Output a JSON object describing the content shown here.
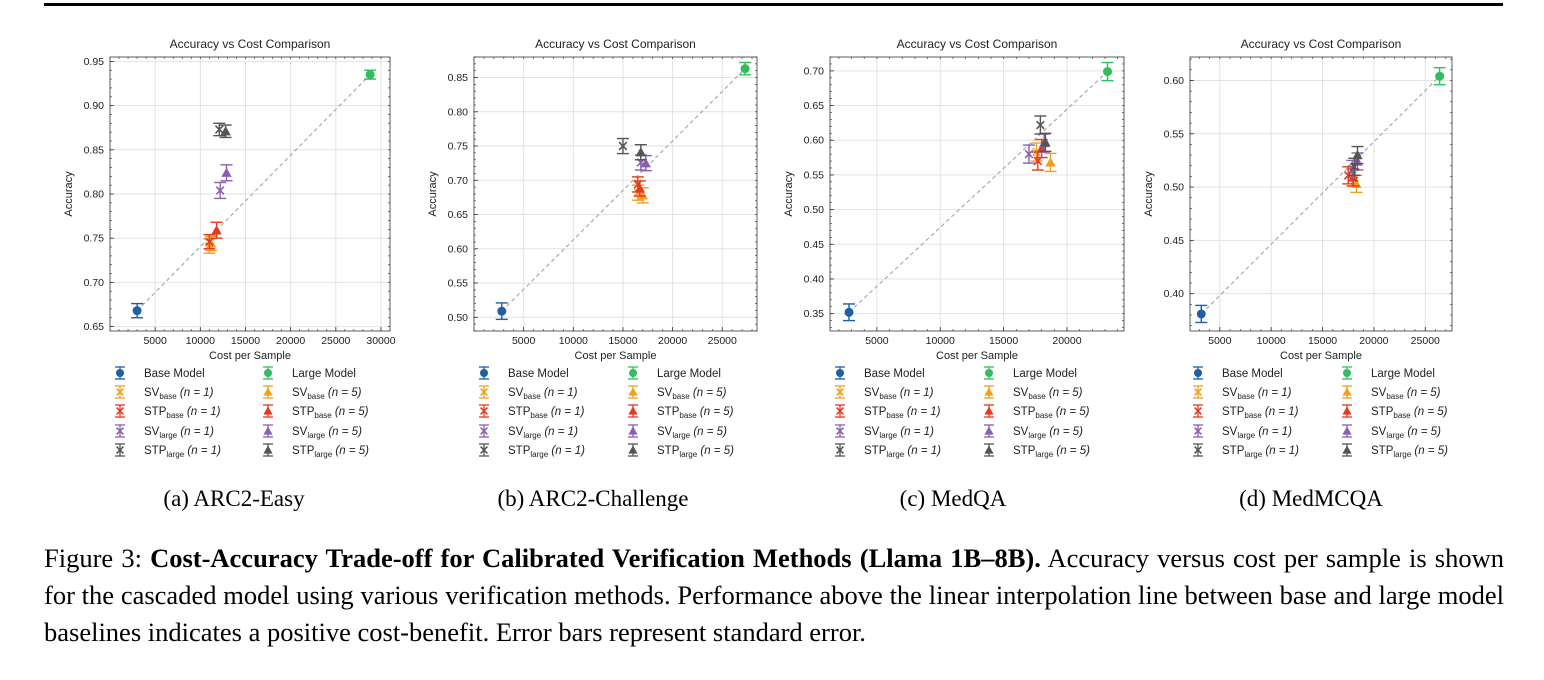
{
  "colors": {
    "base": "#1f5fa5",
    "large": "#2fbf5f",
    "sv_base": "#f0a020",
    "stp_base": "#e53a1e",
    "sv_large": "#8a5fb0",
    "stp_large": "#555555",
    "interp_line": "#aaaaaa",
    "grid": "#e2e2e2"
  },
  "legend_entries": [
    {
      "key": "base",
      "label_main": "Base Model",
      "sub": "",
      "n": "",
      "marker": "circle"
    },
    {
      "key": "large",
      "label_main": "Large Model",
      "sub": "",
      "n": "",
      "marker": "circle"
    },
    {
      "key": "sv_base",
      "label_main": "SV",
      "sub": "base",
      "n": "(n = 1)",
      "marker": "x"
    },
    {
      "key": "sv_base",
      "label_main": "SV",
      "sub": "base",
      "n": "(n = 5)",
      "marker": "triangle"
    },
    {
      "key": "stp_base",
      "label_main": "STP",
      "sub": "base",
      "n": "(n = 1)",
      "marker": "x"
    },
    {
      "key": "stp_base",
      "label_main": "STP",
      "sub": "base",
      "n": "(n = 5)",
      "marker": "triangle"
    },
    {
      "key": "sv_large",
      "label_main": "SV",
      "sub": "large",
      "n": "(n = 1)",
      "marker": "x"
    },
    {
      "key": "sv_large",
      "label_main": "SV",
      "sub": "large",
      "n": "(n = 5)",
      "marker": "triangle"
    },
    {
      "key": "stp_large",
      "label_main": "STP",
      "sub": "large",
      "n": "(n = 1)",
      "marker": "x"
    },
    {
      "key": "stp_large",
      "label_main": "STP",
      "sub": "large",
      "n": "(n = 5)",
      "marker": "triangle"
    }
  ],
  "chart_data": [
    {
      "type": "scatter",
      "title": "Accuracy vs Cost Comparison",
      "xlabel": "Cost per Sample",
      "ylabel": "Accuracy",
      "subcaption": "(a) ARC2-Easy",
      "xlim": [
        0,
        31000
      ],
      "ylim": [
        0.645,
        0.955
      ],
      "xticks": [
        5000,
        10000,
        15000,
        20000,
        25000,
        30000
      ],
      "yticks": [
        0.65,
        0.7,
        0.75,
        0.8,
        0.85,
        0.9,
        0.95
      ],
      "ytick_decimals": 2,
      "grid": true,
      "interpolation_line": {
        "from": "base",
        "to": "large"
      },
      "points": [
        {
          "series": "base",
          "marker": "circle",
          "x": 3000,
          "y": 0.668,
          "err": 0.008
        },
        {
          "series": "large",
          "marker": "circle",
          "x": 28800,
          "y": 0.935,
          "err": 0.005
        },
        {
          "series": "sv_base",
          "marker": "x",
          "x": 11000,
          "y": 0.741,
          "err": 0.008
        },
        {
          "series": "sv_base",
          "marker": "triangle",
          "x": 11200,
          "y": 0.744,
          "err": 0.008
        },
        {
          "series": "stp_base",
          "marker": "x",
          "x": 11000,
          "y": 0.746,
          "err": 0.008
        },
        {
          "series": "stp_base",
          "marker": "triangle",
          "x": 11800,
          "y": 0.759,
          "err": 0.009
        },
        {
          "series": "sv_large",
          "marker": "x",
          "x": 12200,
          "y": 0.804,
          "err": 0.009
        },
        {
          "series": "sv_large",
          "marker": "triangle",
          "x": 12900,
          "y": 0.824,
          "err": 0.009
        },
        {
          "series": "stp_large",
          "marker": "x",
          "x": 12100,
          "y": 0.873,
          "err": 0.007
        },
        {
          "series": "stp_large",
          "marker": "triangle",
          "x": 12800,
          "y": 0.871,
          "err": 0.007
        }
      ]
    },
    {
      "type": "scatter",
      "title": "Accuracy vs Cost Comparison",
      "xlabel": "Cost per Sample",
      "ylabel": "Accuracy",
      "subcaption": "(b) ARC2-Challenge",
      "xlim": [
        0,
        28500
      ],
      "ylim": [
        0.48,
        0.88
      ],
      "xticks": [
        5000,
        10000,
        15000,
        20000,
        25000
      ],
      "yticks": [
        0.5,
        0.55,
        0.6,
        0.65,
        0.7,
        0.75,
        0.8,
        0.85
      ],
      "ytick_decimals": 2,
      "grid": true,
      "interpolation_line": {
        "from": "base",
        "to": "large"
      },
      "points": [
        {
          "series": "base",
          "marker": "circle",
          "x": 2800,
          "y": 0.509,
          "err": 0.012
        },
        {
          "series": "large",
          "marker": "circle",
          "x": 27300,
          "y": 0.863,
          "err": 0.009
        },
        {
          "series": "sv_base",
          "marker": "x",
          "x": 16500,
          "y": 0.682,
          "err": 0.011
        },
        {
          "series": "sv_base",
          "marker": "triangle",
          "x": 17000,
          "y": 0.678,
          "err": 0.011
        },
        {
          "series": "stp_base",
          "marker": "x",
          "x": 16500,
          "y": 0.694,
          "err": 0.011
        },
        {
          "series": "stp_base",
          "marker": "triangle",
          "x": 16700,
          "y": 0.688,
          "err": 0.011
        },
        {
          "series": "sv_large",
          "marker": "x",
          "x": 16800,
          "y": 0.726,
          "err": 0.011
        },
        {
          "series": "sv_large",
          "marker": "triangle",
          "x": 17300,
          "y": 0.725,
          "err": 0.011
        },
        {
          "series": "stp_large",
          "marker": "x",
          "x": 15000,
          "y": 0.75,
          "err": 0.011
        },
        {
          "series": "stp_large",
          "marker": "triangle",
          "x": 16800,
          "y": 0.741,
          "err": 0.011
        }
      ]
    },
    {
      "type": "scatter",
      "title": "Accuracy vs Cost Comparison",
      "xlabel": "Cost per Sample",
      "ylabel": "Accuracy",
      "subcaption": "(c) MedQA",
      "xlim": [
        1300,
        24500
      ],
      "ylim": [
        0.325,
        0.72
      ],
      "xticks": [
        5000,
        10000,
        15000,
        20000
      ],
      "yticks": [
        0.35,
        0.4,
        0.45,
        0.5,
        0.55,
        0.6,
        0.65,
        0.7
      ],
      "ytick_decimals": 2,
      "grid": true,
      "interpolation_line": {
        "from": "base",
        "to": "large"
      },
      "points": [
        {
          "series": "base",
          "marker": "circle",
          "x": 2800,
          "y": 0.352,
          "err": 0.012
        },
        {
          "series": "large",
          "marker": "circle",
          "x": 23200,
          "y": 0.699,
          "err": 0.013
        },
        {
          "series": "sv_base",
          "marker": "x",
          "x": 17600,
          "y": 0.583,
          "err": 0.013
        },
        {
          "series": "sv_base",
          "marker": "triangle",
          "x": 18700,
          "y": 0.568,
          "err": 0.013
        },
        {
          "series": "stp_base",
          "marker": "x",
          "x": 17700,
          "y": 0.57,
          "err": 0.013
        },
        {
          "series": "stp_base",
          "marker": "triangle",
          "x": 18000,
          "y": 0.588,
          "err": 0.013
        },
        {
          "series": "sv_large",
          "marker": "x",
          "x": 17000,
          "y": 0.58,
          "err": 0.013
        },
        {
          "series": "sv_large",
          "marker": "triangle",
          "x": 18200,
          "y": 0.596,
          "err": 0.013
        },
        {
          "series": "stp_large",
          "marker": "x",
          "x": 17900,
          "y": 0.622,
          "err": 0.013
        },
        {
          "series": "stp_large",
          "marker": "triangle",
          "x": 18300,
          "y": 0.597,
          "err": 0.013
        }
      ]
    },
    {
      "type": "scatter",
      "title": "Accuracy vs Cost Comparison",
      "xlabel": "Cost per Sample",
      "ylabel": "Accuracy",
      "subcaption": "(d) MedMCQA",
      "xlim": [
        2100,
        27600
      ],
      "ylim": [
        0.365,
        0.622
      ],
      "xticks": [
        5000,
        10000,
        15000,
        20000,
        25000
      ],
      "yticks": [
        0.4,
        0.45,
        0.5,
        0.55,
        0.6
      ],
      "ytick_decimals": 2,
      "grid": true,
      "interpolation_line": {
        "from": "base",
        "to": "large"
      },
      "points": [
        {
          "series": "base",
          "marker": "circle",
          "x": 3200,
          "y": 0.381,
          "err": 0.008
        },
        {
          "series": "large",
          "marker": "circle",
          "x": 26400,
          "y": 0.604,
          "err": 0.008
        },
        {
          "series": "sv_base",
          "marker": "x",
          "x": 17900,
          "y": 0.509,
          "err": 0.008
        },
        {
          "series": "sv_base",
          "marker": "triangle",
          "x": 18300,
          "y": 0.503,
          "err": 0.008
        },
        {
          "series": "stp_base",
          "marker": "x",
          "x": 17500,
          "y": 0.511,
          "err": 0.008
        },
        {
          "series": "stp_base",
          "marker": "triangle",
          "x": 18000,
          "y": 0.509,
          "err": 0.008
        },
        {
          "series": "sv_large",
          "marker": "x",
          "x": 17900,
          "y": 0.517,
          "err": 0.008
        },
        {
          "series": "sv_large",
          "marker": "triangle",
          "x": 18400,
          "y": 0.524,
          "err": 0.008
        },
        {
          "series": "stp_large",
          "marker": "x",
          "x": 18100,
          "y": 0.519,
          "err": 0.008
        },
        {
          "series": "stp_large",
          "marker": "triangle",
          "x": 18400,
          "y": 0.53,
          "err": 0.008
        }
      ]
    }
  ],
  "caption": {
    "prefix": "Figure 3: ",
    "bold": "Cost-Accuracy Trade-off for Calibrated Verification Methods (Llama 1B–8B).",
    "rest": " Accuracy versus cost per sample is shown for the cascaded model using various verification methods. Performance above the linear interpolation line between base and large model baselines indicates a positive cost-benefit. Error bars represent standard error."
  }
}
